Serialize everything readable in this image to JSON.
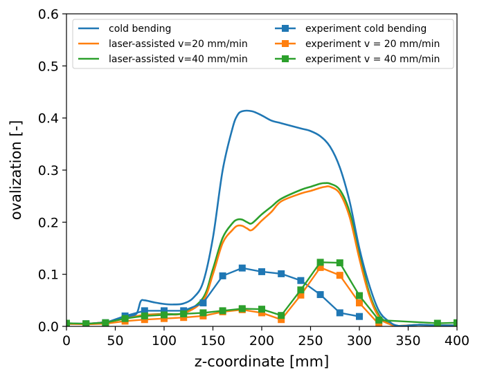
{
  "chart_data": {
    "type": "line",
    "xlabel": "z-coordinate [mm]",
    "ylabel": "ovalization [-]",
    "xlim": [
      0,
      400
    ],
    "ylim": [
      0,
      0.6
    ],
    "xticks": [
      "0",
      "50",
      "100",
      "150",
      "200",
      "250",
      "300",
      "350",
      "400"
    ],
    "yticks": [
      "0.0",
      "0.1",
      "0.2",
      "0.3",
      "0.4",
      "0.5",
      "0.6"
    ],
    "xtick_values": [
      0,
      50,
      100,
      150,
      200,
      250,
      300,
      350,
      400
    ],
    "ytick_values": [
      0,
      0.1,
      0.2,
      0.3,
      0.4,
      0.5,
      0.6
    ],
    "grid": false,
    "legend_position": "top",
    "series": [
      {
        "name": "cold bending",
        "color": "#1f77b4",
        "marker": "none",
        "x": [
          0,
          20,
          40,
          55,
          65,
          72,
          76,
          80,
          90,
          100,
          110,
          120,
          130,
          140,
          150,
          160,
          170,
          175,
          180,
          190,
          200,
          210,
          220,
          240,
          250,
          260,
          270,
          280,
          290,
          300,
          310,
          320,
          330,
          340,
          360,
          380,
          400
        ],
        "y": [
          0.005,
          0.005,
          0.008,
          0.015,
          0.02,
          0.025,
          0.048,
          0.05,
          0.046,
          0.043,
          0.042,
          0.044,
          0.055,
          0.085,
          0.17,
          0.3,
          0.38,
          0.405,
          0.413,
          0.413,
          0.405,
          0.395,
          0.39,
          0.38,
          0.375,
          0.365,
          0.345,
          0.305,
          0.24,
          0.15,
          0.08,
          0.03,
          0.01,
          0.001,
          0.003,
          0.002,
          0.002
        ]
      },
      {
        "name": "laser-assisted v=20 mm/min",
        "color": "#ff7f0e",
        "marker": "none",
        "x": [
          0,
          20,
          40,
          60,
          80,
          100,
          120,
          140,
          150,
          160,
          170,
          175,
          180,
          185,
          190,
          200,
          210,
          220,
          240,
          250,
          260,
          265,
          270,
          280,
          290,
          300,
          310,
          320,
          330,
          340,
          360,
          380,
          400
        ],
        "y": [
          0.005,
          0.005,
          0.008,
          0.015,
          0.022,
          0.023,
          0.025,
          0.05,
          0.1,
          0.16,
          0.185,
          0.193,
          0.193,
          0.188,
          0.185,
          0.203,
          0.22,
          0.24,
          0.255,
          0.26,
          0.266,
          0.268,
          0.268,
          0.255,
          0.21,
          0.13,
          0.06,
          0.018,
          0.005,
          0.001,
          0.003,
          0.002,
          0.002
        ]
      },
      {
        "name": "laser-assisted v=40 mm/min",
        "color": "#2ca02c",
        "marker": "none",
        "x": [
          0,
          20,
          40,
          60,
          80,
          100,
          120,
          140,
          150,
          160,
          170,
          175,
          180,
          185,
          190,
          200,
          210,
          220,
          240,
          250,
          260,
          265,
          270,
          280,
          290,
          300,
          310,
          320,
          330,
          340,
          360,
          380,
          400
        ],
        "y": [
          0.005,
          0.005,
          0.008,
          0.015,
          0.022,
          0.024,
          0.026,
          0.055,
          0.11,
          0.17,
          0.198,
          0.205,
          0.205,
          0.2,
          0.198,
          0.215,
          0.23,
          0.245,
          0.262,
          0.268,
          0.274,
          0.275,
          0.274,
          0.262,
          0.22,
          0.14,
          0.065,
          0.022,
          0.006,
          0.001,
          0.003,
          0.002,
          0.002
        ]
      },
      {
        "name": "experiment cold bending",
        "color": "#1f77b4",
        "marker": "square",
        "x": [
          0,
          20,
          40,
          60,
          80,
          100,
          120,
          140,
          160,
          180,
          200,
          220,
          240,
          260,
          280,
          300
        ],
        "y": [
          0.006,
          0.005,
          0.007,
          0.02,
          0.03,
          0.03,
          0.03,
          0.045,
          0.097,
          0.112,
          0.105,
          0.101,
          0.088,
          0.061,
          0.026,
          0.019
        ]
      },
      {
        "name": "experiment v = 20 mm/min",
        "color": "#ff7f0e",
        "marker": "square",
        "x": [
          0,
          20,
          40,
          60,
          80,
          100,
          120,
          140,
          160,
          180,
          200,
          220,
          240,
          260,
          280,
          300,
          320
        ],
        "y": [
          0.005,
          0.004,
          0.005,
          0.01,
          0.013,
          0.015,
          0.017,
          0.02,
          0.028,
          0.032,
          0.026,
          0.013,
          0.06,
          0.113,
          0.098,
          0.045,
          0.004
        ]
      },
      {
        "name": "experiment v = 40 mm/min",
        "color": "#2ca02c",
        "marker": "square",
        "x": [
          0,
          20,
          40,
          60,
          80,
          100,
          120,
          140,
          160,
          180,
          200,
          220,
          240,
          260,
          280,
          300,
          320,
          380,
          400
        ],
        "y": [
          0.006,
          0.005,
          0.007,
          0.015,
          0.02,
          0.022,
          0.024,
          0.026,
          0.03,
          0.034,
          0.033,
          0.021,
          0.07,
          0.123,
          0.122,
          0.059,
          0.012,
          0.006,
          0.007
        ]
      }
    ]
  }
}
